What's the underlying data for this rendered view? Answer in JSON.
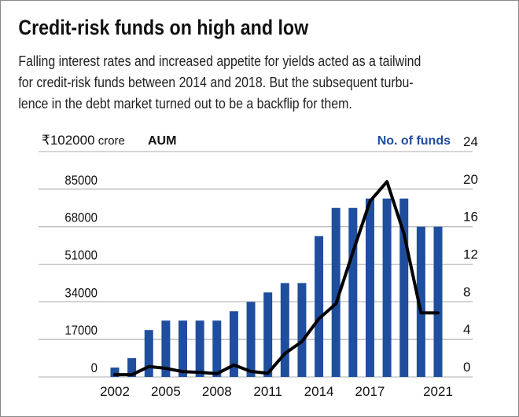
{
  "chart_data": {
    "type": "bar+line",
    "title": "Credit-risk funds on high and low",
    "subtitle_lines": [
      "Falling interest rates and increased appetite for yields acted as a tailwind",
      "for credit-risk funds between 2014 and 2018. But the subsequent turbu-",
      "lence in the debt market turned out to be a backflip for them."
    ],
    "left_axis": {
      "unit_label": "crore",
      "series_label": "AUM",
      "range": [
        0,
        102000
      ],
      "ticks": [
        "0",
        "17000",
        "34000",
        "51000",
        "68000",
        "85000",
        "₹102000"
      ]
    },
    "right_axis": {
      "series_label": "No. of funds",
      "range": [
        0,
        24
      ],
      "ticks": [
        "0",
        "4",
        "8",
        "12",
        "16",
        "20",
        "24"
      ]
    },
    "x_tick_labels": [
      "2002",
      "2005",
      "2008",
      "2011",
      "2014",
      "2017",
      "2021"
    ],
    "years": [
      2002,
      2003,
      2004,
      2005,
      2006,
      2007,
      2008,
      2009,
      2010,
      2011,
      2012,
      2013,
      2014,
      2015,
      2016,
      2017,
      2018,
      2019,
      2020,
      2021
    ],
    "series": [
      {
        "name": "No. of funds",
        "type": "bar",
        "axis": "right",
        "color": "#1f4e9e",
        "values": [
          1,
          2,
          5,
          6,
          6,
          6,
          6,
          7,
          8,
          9,
          10,
          10,
          15,
          18,
          18,
          19,
          19,
          19,
          16,
          16
        ]
      },
      {
        "name": "AUM",
        "type": "line",
        "axis": "left",
        "color": "#000000",
        "values": [
          1000,
          1000,
          4700,
          3900,
          2400,
          2100,
          1500,
          5400,
          2500,
          1700,
          10600,
          16000,
          26400,
          33100,
          56500,
          79500,
          88400,
          64800,
          29000,
          29000
        ]
      }
    ],
    "grid": true
  }
}
